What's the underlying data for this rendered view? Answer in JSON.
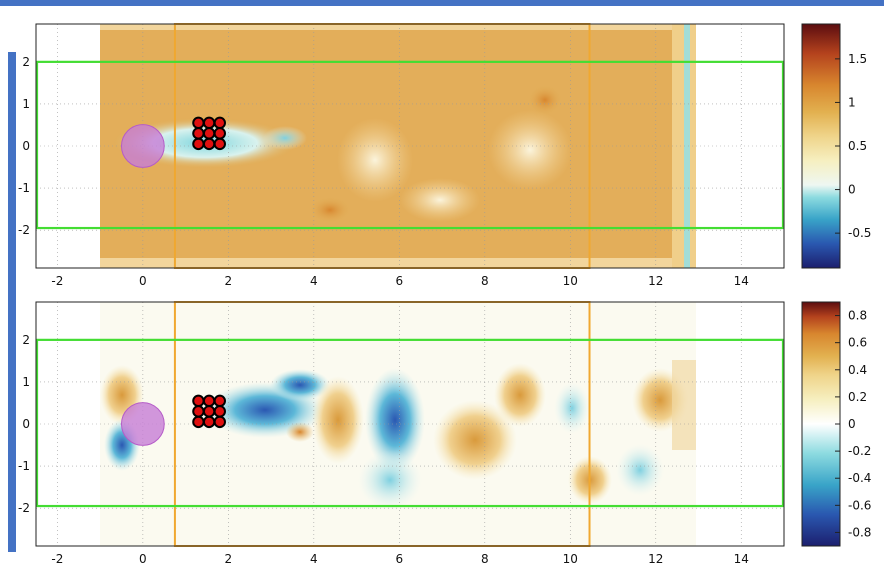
{
  "chart_data": [
    {
      "type": "heatmap",
      "panel": "top",
      "title": "",
      "xlabel": "",
      "ylabel": "",
      "xlim": [
        -2.5,
        15.0
      ],
      "ylim": [
        -2.9,
        2.9
      ],
      "xticks": [
        "-2",
        "0",
        "2",
        "4",
        "6",
        "8",
        "10",
        "12",
        "14"
      ],
      "xtick_values": [
        -2,
        0,
        2,
        4,
        6,
        8,
        10,
        12,
        14
      ],
      "yticks": [
        "2",
        "1",
        "0",
        "-1",
        "-2"
      ],
      "ytick_values": [
        2,
        1,
        0,
        -1,
        -2
      ],
      "grid": true,
      "colorbar": {
        "range": [
          -0.9,
          1.9
        ],
        "ticks": [
          "1.5",
          "1",
          "0.5",
          "0",
          "-0.5"
        ],
        "tick_values": [
          1.5,
          1,
          0.5,
          0,
          -0.5
        ]
      },
      "field_extent_x": [
        -1.0,
        13.0
      ],
      "cylinder": {
        "x": 0,
        "y": 0,
        "r": 0.5,
        "color": "#c77dd6"
      },
      "particles_x": [
        1.3,
        1.55,
        1.8
      ],
      "particles_y": [
        0.55,
        0.3,
        0.05
      ],
      "green_rect": {
        "x": [
          -2.5,
          15.0
        ],
        "y": [
          -1.95,
          2.0
        ],
        "color": "#44dd33"
      },
      "orange_rect": {
        "x": [
          0.75,
          10.45
        ],
        "y": [
          -2.9,
          2.9
        ],
        "color": "#f0a830"
      }
    },
    {
      "type": "heatmap",
      "panel": "bottom",
      "title": "",
      "xlabel": "",
      "ylabel": "",
      "xlim": [
        -2.5,
        15.0
      ],
      "ylim": [
        -2.9,
        2.9
      ],
      "xticks": [
        "-2",
        "0",
        "2",
        "4",
        "6",
        "8",
        "10",
        "12",
        "14"
      ],
      "xtick_values": [
        -2,
        0,
        2,
        4,
        6,
        8,
        10,
        12,
        14
      ],
      "yticks": [
        "2",
        "1",
        "0",
        "-1",
        "-2"
      ],
      "ytick_values": [
        2,
        1,
        0,
        -1,
        -2
      ],
      "grid": true,
      "colorbar": {
        "range": [
          -0.9,
          0.9
        ],
        "ticks": [
          "0.8",
          "0.6",
          "0.4",
          "0.2",
          "0",
          "-0.2",
          "-0.4",
          "-0.6",
          "-0.8"
        ],
        "tick_values": [
          0.8,
          0.6,
          0.4,
          0.2,
          0,
          -0.2,
          -0.4,
          -0.6,
          -0.8
        ]
      },
      "field_extent_x": [
        -1.0,
        13.0
      ],
      "cylinder": {
        "x": 0,
        "y": 0,
        "r": 0.5,
        "color": "#c77dd6"
      },
      "particles_x": [
        1.3,
        1.55,
        1.8
      ],
      "particles_y": [
        0.55,
        0.3,
        0.05
      ],
      "green_rect": {
        "x": [
          -2.5,
          15.0
        ],
        "y": [
          -1.95,
          2.0
        ],
        "color": "#44dd33"
      },
      "orange_rect": {
        "x": [
          0.75,
          10.45
        ],
        "y": [
          -2.9,
          2.9
        ],
        "color": "#f0a830"
      }
    }
  ]
}
